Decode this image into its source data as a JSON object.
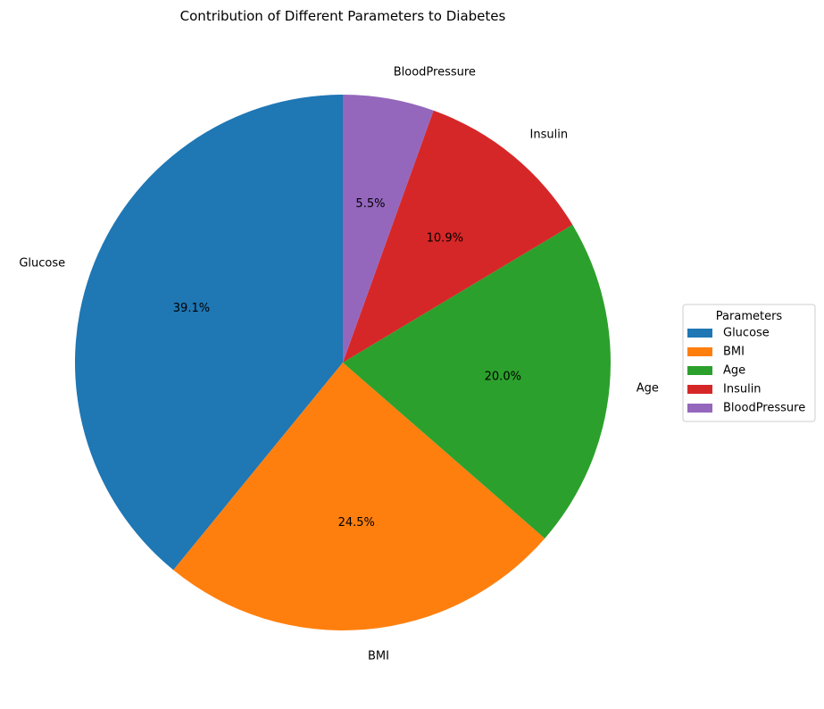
{
  "chart_data": {
    "type": "pie",
    "title": "Contribution of Different Parameters to Diabetes",
    "categories": [
      "Glucose",
      "BMI",
      "Age",
      "Insulin",
      "BloodPressure"
    ],
    "values": [
      39.1,
      24.5,
      20.0,
      10.9,
      5.5
    ],
    "value_labels": [
      "39.1%",
      "24.5%",
      "20.0%",
      "10.9%",
      "5.5%"
    ],
    "colors": [
      "#1f77b4",
      "#ff7f0e",
      "#2ca02c",
      "#d62728",
      "#9467bd"
    ],
    "start_angle_deg": 90,
    "direction": "counterclockwise",
    "legend": {
      "title": "Parameters",
      "placement": "right",
      "entries": [
        "Glucose",
        "BMI",
        "Age",
        "Insulin",
        "BloodPressure"
      ]
    }
  }
}
